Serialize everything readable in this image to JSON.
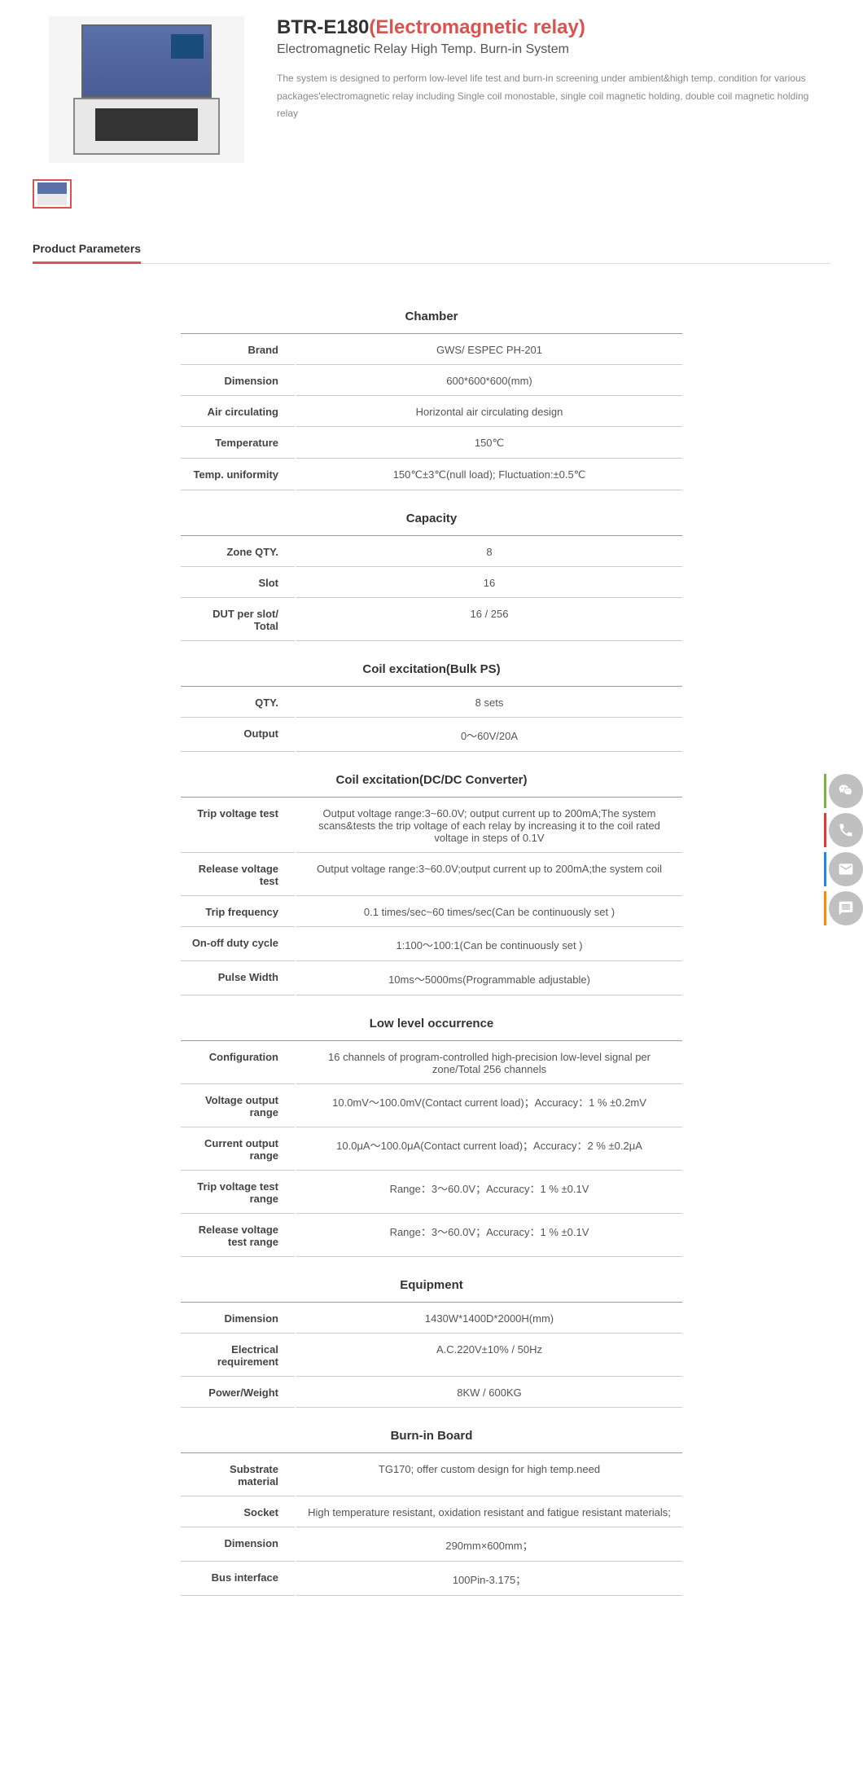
{
  "product": {
    "title_main": "BTR-E180",
    "title_red": "(Electromagnetic relay)",
    "subtitle": "Electromagnetic Relay High Temp. Burn-in System",
    "description": "The system is designed to perform low-level life test and burn-in screening under ambient&high temp. condition for various packages'electromagnetic relay including Single coil monostable, single coil magnetic holding, double coil magnetic holding relay"
  },
  "tab": {
    "label": "Product Parameters"
  },
  "sections": {
    "chamber": {
      "header": "Chamber",
      "rows": [
        {
          "label": "Brand",
          "value": "GWS/ ESPEC PH-201"
        },
        {
          "label": "Dimension",
          "value": "600*600*600(mm)"
        },
        {
          "label": "Air circulating",
          "value": "Horizontal air circulating design"
        },
        {
          "label": "Temperature",
          "value": "150℃"
        },
        {
          "label": "Temp. uniformity",
          "value": "150℃±3℃(null load); Fluctuation:±0.5℃"
        }
      ]
    },
    "capacity": {
      "header": "Capacity",
      "rows": [
        {
          "label": "Zone QTY.",
          "value": "8"
        },
        {
          "label": "Slot",
          "value": "16"
        },
        {
          "label": "DUT per slot/ Total",
          "value": "16 / 256"
        }
      ]
    },
    "coil_bulk": {
      "header": "Coil excitation(Bulk PS)",
      "rows": [
        {
          "label": "QTY.",
          "value": "8 sets"
        },
        {
          "label": "Output",
          "value": "0～60V/20A"
        }
      ]
    },
    "coil_dcdc": {
      "header": "Coil excitation(DC/DC Converter)",
      "rows": [
        {
          "label": "Trip voltage test",
          "value": "Output voltage range:3~60.0V; output current up to 200mA;The system scans&tests the trip voltage of each relay by increasing it to the coil rated voltage in steps of 0.1V"
        },
        {
          "label": "Release voltage test",
          "value": "Output voltage range:3~60.0V;output current up to 200mA;the system coil"
        },
        {
          "label": "Trip frequency",
          "value": "0.1 times/sec~60 times/sec(Can be continuously set )"
        },
        {
          "label": "On-off duty cycle",
          "value": "1:100～100:1(Can be continuously set )"
        },
        {
          "label": "Pulse Width",
          "value": "10ms～5000ms(Programmable adjustable)"
        }
      ]
    },
    "low_level": {
      "header": "Low level occurrence",
      "rows": [
        {
          "label": "Configuration",
          "value": "16 channels of program-controlled high-precision low-level signal per zone/Total 256 channels"
        },
        {
          "label": "Voltage output range",
          "value": "10.0mV～100.0mV(Contact current load)；Accuracy：1 % ±0.2mV"
        },
        {
          "label": "Current output range",
          "value": "10.0μA～100.0μA(Contact current load)；Accuracy：2 % ±0.2μA"
        },
        {
          "label": "Trip voltage test range",
          "value": "Range：3～60.0V；Accuracy：1 % ±0.1V"
        },
        {
          "label": "Release voltage test range",
          "value": "Range：3～60.0V；Accuracy：1 % ±0.1V"
        }
      ]
    },
    "equipment": {
      "header": "Equipment",
      "rows": [
        {
          "label": "Dimension",
          "value": "1430W*1400D*2000H(mm)"
        },
        {
          "label": "Electrical requirement",
          "value": "A.C.220V±10% / 50Hz"
        },
        {
          "label": "Power/Weight",
          "value": "8KW / 600KG"
        }
      ]
    },
    "burnin": {
      "header": "Burn-in Board",
      "rows": [
        {
          "label": "Substrate material",
          "value": "TG170; offer custom design for high temp.need"
        },
        {
          "label": "Socket",
          "value": "High temperature resistant, oxidation resistant and fatigue resistant materials;"
        },
        {
          "label": "Dimension",
          "value": "290mm×600mm；"
        },
        {
          "label": "Bus interface",
          "value": "100Pin-3.175；"
        }
      ]
    }
  }
}
